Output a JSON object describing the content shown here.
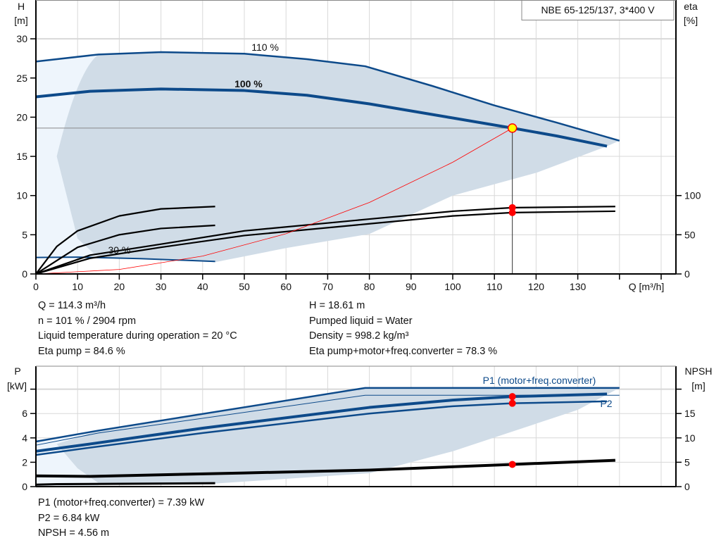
{
  "chart_data": [
    {
      "type": "line",
      "title": "NBE 65-125/137, 3*400 V",
      "xlabel": "Q [m³/h]",
      "ylabel": "H\n[m]",
      "ylabel_parts": [
        "H",
        "[m]"
      ],
      "y2label_parts": [
        "eta",
        "[%]"
      ],
      "xlim": [
        0,
        150
      ],
      "ylim": [
        0,
        35
      ],
      "y2lim": [
        0,
        350
      ],
      "xticks": [
        0,
        10,
        20,
        30,
        40,
        50,
        60,
        70,
        80,
        90,
        100,
        110,
        120,
        130
      ],
      "yticks": [
        0,
        5,
        10,
        15,
        20,
        25,
        30
      ],
      "y2ticks": [
        0,
        50,
        100
      ],
      "grid": true,
      "annotations": [
        "110 %",
        "100 %",
        "30 %"
      ],
      "series": [
        {
          "name": "110 %",
          "kind": "head",
          "x": [
            0,
            15,
            30,
            50,
            65,
            79,
            95,
            110,
            125,
            140
          ],
          "y": [
            27.1,
            28.0,
            28.3,
            28.1,
            27.4,
            26.5,
            24.0,
            21.5,
            19.3,
            17.0
          ]
        },
        {
          "name": "100 %",
          "kind": "head",
          "x": [
            0,
            13,
            30,
            50,
            65,
            80,
            100,
            114.3,
            125,
            137
          ],
          "y": [
            22.6,
            23.3,
            23.6,
            23.4,
            22.8,
            21.7,
            19.9,
            18.61,
            17.6,
            16.3
          ]
        },
        {
          "name": "30 %",
          "kind": "head",
          "x": [
            0,
            10,
            25,
            43
          ],
          "y": [
            2.1,
            2.15,
            1.95,
            1.6
          ]
        },
        {
          "kind": "eta",
          "x": [
            0,
            5,
            10,
            20,
            30,
            43
          ],
          "y": [
            0,
            35,
            55,
            74,
            83,
            86
          ]
        },
        {
          "kind": "eta",
          "x": [
            0,
            5,
            10,
            20,
            30,
            43
          ],
          "y": [
            0,
            17,
            34,
            50,
            58,
            62
          ]
        },
        {
          "kind": "eta",
          "x": [
            0,
            13,
            30,
            50,
            80,
            100,
            114.3,
            139
          ],
          "y": [
            0,
            24,
            38,
            55,
            70,
            80,
            84.6,
            86
          ]
        },
        {
          "kind": "eta",
          "x": [
            0,
            13,
            30,
            50,
            80,
            100,
            114.3,
            139
          ],
          "y": [
            0,
            20,
            34,
            49,
            64,
            74,
            78.3,
            80
          ]
        },
        {
          "kind": "system",
          "x": [
            0,
            20,
            40,
            60,
            80,
            100,
            114.3
          ],
          "y": [
            0,
            0.57,
            2.28,
            5.13,
            9.12,
            14.25,
            18.61
          ]
        }
      ],
      "operating_point": {
        "Q": 114.3,
        "H": 18.61,
        "eta_pump": 84.6,
        "eta_total": 78.3
      },
      "range_area": {
        "upper_x": [
          15,
          30,
          50,
          65,
          79,
          95,
          110,
          125,
          140
        ],
        "upper_y": [
          28.0,
          28.3,
          28.1,
          27.4,
          26.5,
          24.0,
          21.5,
          19.3,
          17.0
        ],
        "lower_x": [
          137,
          120,
          100,
          80,
          60,
          43,
          25,
          15,
          10,
          5
        ],
        "lower_y": [
          16.3,
          12.9,
          10.0,
          5.1,
          3.3,
          1.5,
          1.9,
          2.1,
          4.5,
          15.0
        ]
      }
    },
    {
      "type": "line",
      "ylabel_parts": [
        "P",
        "[kW]"
      ],
      "y2label_parts": [
        "NPSH",
        "[m]"
      ],
      "xlim": [
        0,
        150
      ],
      "ylim": [
        0,
        9.5
      ],
      "y2lim": [
        0,
        23.75
      ],
      "yticks": [
        0,
        2,
        4,
        6,
        8
      ],
      "y2ticks": [
        0,
        5,
        10,
        15,
        20
      ],
      "ytick_labels": [
        "0",
        "2",
        "4",
        "6",
        ""
      ],
      "y2tick_labels": [
        "0",
        "5",
        "10",
        "15",
        ""
      ],
      "grid": true,
      "series": [
        {
          "name": "P1 (motor+freq.converter)",
          "kind": "p1max",
          "x": [
            0,
            15,
            79,
            140
          ],
          "y": [
            3.7,
            4.6,
            8.1,
            8.1
          ]
        },
        {
          "kind": "p1thin",
          "x": [
            0,
            15,
            79,
            140
          ],
          "y": [
            3.4,
            4.4,
            7.5,
            7.5
          ]
        },
        {
          "kind": "p1",
          "x": [
            0,
            13,
            40,
            80,
            100,
            114.3,
            137
          ],
          "y": [
            2.9,
            3.5,
            4.8,
            6.5,
            7.1,
            7.39,
            7.6
          ]
        },
        {
          "name": "P2",
          "kind": "p2",
          "x": [
            0,
            13,
            40,
            80,
            100,
            114.3,
            137
          ],
          "y": [
            2.6,
            3.2,
            4.4,
            6.0,
            6.6,
            6.84,
            7.0
          ]
        },
        {
          "kind": "npsh",
          "x": [
            0,
            13,
            50,
            80,
            114.3,
            139
          ],
          "y_npsh": [
            2.2,
            2.1,
            2.8,
            3.4,
            4.56,
            5.4
          ]
        },
        {
          "kind": "npsh30",
          "x": [
            0,
            5,
            43
          ],
          "y_npsh": [
            0.4,
            0.5,
            0.7
          ]
        }
      ],
      "operating_point": {
        "P1": 7.39,
        "P2": 6.84,
        "NPSH": 4.56
      },
      "range_area": {
        "upper_x": [
          15,
          79,
          140
        ],
        "upper_y": [
          4.6,
          8.1,
          8.1
        ],
        "lower_x": [
          140,
          130,
          100,
          80,
          43,
          15,
          10,
          5
        ],
        "lower_y": [
          8.1,
          6.3,
          2.9,
          1.1,
          0.25,
          0.3,
          1.5,
          3.5
        ]
      }
    }
  ],
  "info_top": {
    "left": [
      "Q = 114.3 m³/h",
      "n = 101 % / 2904 rpm",
      "Liquid temperature during operation = 20 °C",
      "Eta pump = 84.6 %"
    ],
    "right": [
      "H = 18.61 m",
      "Pumped liquid = Water",
      "Density = 998.2 kg/m³",
      "Eta pump+motor+freq.converter = 78.3 %"
    ]
  },
  "info_bottom": [
    "P1 (motor+freq.converter) = 7.39 kW",
    "P2 = 6.84 kW",
    "NPSH = 4.56 m"
  ],
  "colors": {
    "curve": "#0d4a8a",
    "area": "#d0dce7",
    "area_light": "#eef5fc",
    "grid": "#d8d8d8",
    "point": "#ff0000",
    "duty_point": "#ffff00",
    "eta": "#000000"
  }
}
